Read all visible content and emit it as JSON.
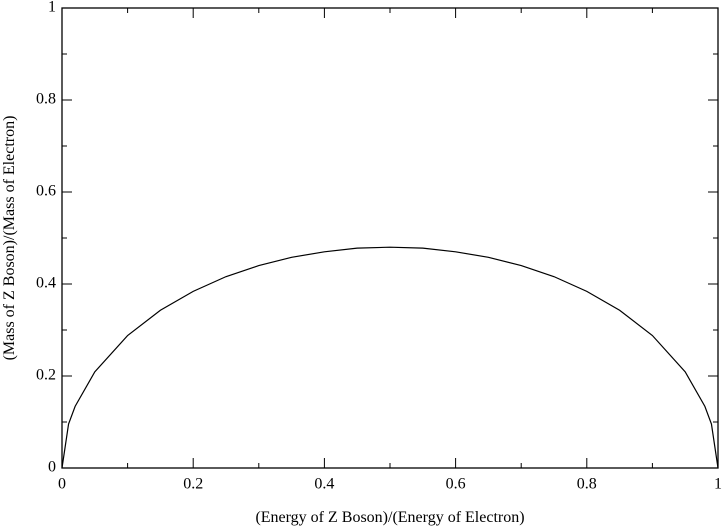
{
  "chart_data": {
    "type": "line",
    "xlabel": "(Energy of Z Boson)/(Energy of Electron)",
    "ylabel": "(Mass of Z Boson)/(Mass of Electron)",
    "x": [
      0,
      0.01,
      0.02,
      0.05,
      0.1,
      0.15,
      0.2,
      0.25,
      0.3,
      0.35,
      0.4,
      0.45,
      0.5,
      0.55,
      0.6,
      0.65,
      0.7,
      0.75,
      0.8,
      0.85,
      0.9,
      0.95,
      0.98,
      0.99,
      1
    ],
    "series": [
      {
        "color": "#000000",
        "values": [
          0,
          0.0955,
          0.134,
          0.209,
          0.288,
          0.343,
          0.384,
          0.416,
          0.44,
          0.458,
          0.47,
          0.478,
          0.48,
          0.478,
          0.47,
          0.458,
          0.44,
          0.416,
          0.384,
          0.343,
          0.288,
          0.209,
          0.134,
          0.0955,
          0
        ]
      }
    ],
    "xlim": [
      0,
      1
    ],
    "ylim": [
      0,
      1
    ],
    "xticks": [
      0,
      0.2,
      0.4,
      0.6,
      0.8,
      1
    ],
    "yticks": [
      0,
      0.2,
      0.4,
      0.6,
      0.8,
      1
    ],
    "xminorticks": [
      0.1,
      0.3,
      0.5,
      0.7,
      0.9
    ],
    "yminorticks": [
      0.1,
      0.3,
      0.5,
      0.7,
      0.9
    ],
    "grid": false
  }
}
